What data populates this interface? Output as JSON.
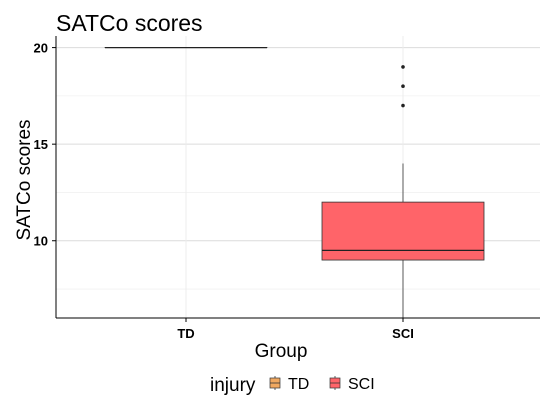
{
  "chart_data": {
    "type": "box",
    "title": "SATCo scores",
    "xlabel": "Group",
    "ylabel": "SATCo scores",
    "categories": [
      "TD",
      "SCI"
    ],
    "ylim": [
      6,
      20.6
    ],
    "yticks": [
      10,
      15,
      20
    ],
    "grid": true,
    "legend": {
      "title": "injury",
      "position": "bottom",
      "entries": [
        {
          "label": "TD",
          "color": "#f0a860"
        },
        {
          "label": "SCI",
          "color": "#ff6469"
        }
      ]
    },
    "boxes": [
      {
        "category": "TD",
        "min": 20,
        "q1": 20,
        "median": 20,
        "q3": 20,
        "max": 20,
        "outliers": [],
        "color": "#f0a860"
      },
      {
        "category": "SCI",
        "min": 6,
        "q1": 9,
        "median": 9.5,
        "q3": 12,
        "max": 14,
        "outliers": [
          17,
          18,
          19
        ],
        "color": "#ff6469"
      }
    ]
  }
}
